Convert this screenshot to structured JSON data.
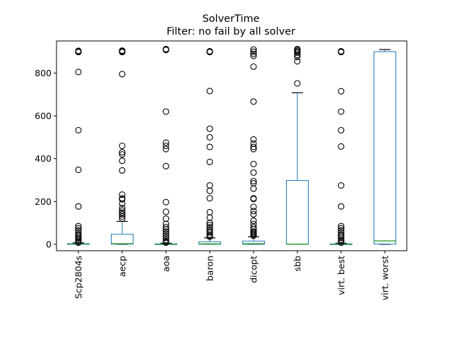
{
  "chart_data": {
    "type": "box",
    "title": "SolverTime",
    "subtitle": "Filter: no fail by all solver",
    "ylim": [
      -30,
      950
    ],
    "yticks": [
      0,
      200,
      400,
      600,
      800
    ],
    "grid": false,
    "categories": [
      "Scp2804s",
      "aecp",
      "aoa",
      "baron",
      "dicopt",
      "sbb",
      "virt. best",
      "virt. worst"
    ],
    "boxes": [
      {
        "name": "Scp2804s",
        "q1": 0,
        "median": 1,
        "q3": 3,
        "whislo": 0,
        "whishi": 7,
        "fliers": [
          900,
          902,
          904,
          898,
          805,
          533,
          348,
          177,
          85,
          75,
          65,
          55,
          45,
          38,
          30,
          25,
          18,
          12,
          8
        ]
      },
      {
        "name": "aecp",
        "q1": 1,
        "median": 3,
        "q3": 47,
        "whislo": 0,
        "whishi": 107,
        "fliers": [
          900,
          902,
          905,
          898,
          795,
          460,
          430,
          420,
          390,
          345,
          232,
          215,
          210,
          190,
          170,
          158,
          148,
          140,
          130,
          120
        ]
      },
      {
        "name": "aoa",
        "q1": 0,
        "median": 1,
        "q3": 2,
        "whislo": 0,
        "whishi": 5,
        "fliers": [
          910,
          912,
          908,
          620,
          475,
          460,
          445,
          365,
          197,
          152,
          120,
          95,
          80,
          70,
          60,
          50,
          40,
          30,
          20,
          12,
          8
        ]
      },
      {
        "name": "baron",
        "q1": 0,
        "median": 2,
        "q3": 12,
        "whislo": 0,
        "whishi": 30,
        "fliers": [
          900,
          902,
          898,
          716,
          540,
          500,
          455,
          385,
          275,
          250,
          215,
          150,
          125,
          100,
          90,
          80,
          70,
          60,
          55,
          45,
          40,
          35
        ]
      },
      {
        "name": "dicopt",
        "q1": 0,
        "median": 3,
        "q3": 15,
        "whislo": 0,
        "whishi": 35,
        "fliers": [
          910,
          900,
          890,
          880,
          830,
          667,
          490,
          470,
          455,
          445,
          375,
          335,
          295,
          285,
          260,
          215,
          212,
          175,
          155,
          140,
          110,
          95,
          80,
          70,
          60,
          55,
          50,
          45,
          40
        ]
      },
      {
        "name": "sbb",
        "q1": 0,
        "median": 1,
        "q3": 298,
        "whislo": 0,
        "whishi": 708,
        "fliers": [
          910,
          912,
          905,
          900,
          895,
          885,
          875,
          855,
          752
        ]
      },
      {
        "name": "virt. best",
        "q1": 0,
        "median": 1,
        "q3": 2,
        "whislo": 0,
        "whishi": 5,
        "fliers": [
          900,
          902,
          898,
          715,
          620,
          533,
          457,
          275,
          177,
          85,
          75,
          65,
          55,
          45,
          38,
          30,
          22,
          15,
          8
        ]
      },
      {
        "name": "virt. worst",
        "q1": 1,
        "median": 16,
        "q3": 900,
        "whislo": 0,
        "whishi": 910,
        "fliers": []
      }
    ]
  }
}
